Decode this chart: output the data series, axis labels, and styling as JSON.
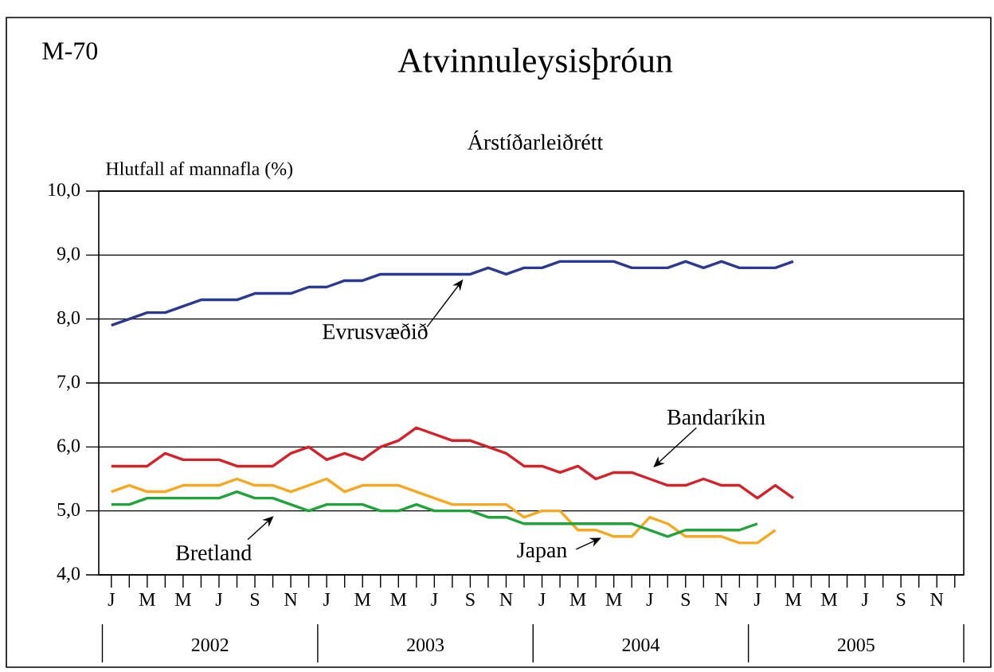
{
  "chart_data": {
    "type": "line",
    "title": "Atvinnuleysisþróun",
    "subtitle": "Árstíðarleiðrétt",
    "ylabel": "Hlutfall af mannafla (%)",
    "categories": [
      "J",
      null,
      "M",
      null,
      "M",
      null,
      "J",
      null,
      "S",
      null,
      "N",
      null,
      "J",
      null,
      "M",
      null,
      "M",
      null,
      "J",
      null,
      "S",
      null,
      "N",
      null,
      "J",
      null,
      "M",
      null,
      "M",
      null,
      "J",
      null,
      "S",
      null,
      "N",
      null,
      "J",
      null,
      "M",
      null,
      "M",
      null,
      "J",
      null,
      "S",
      null,
      "N",
      null
    ],
    "series": [
      {
        "name": "Evrusvæðið",
        "color": "#2b3990",
        "values": [
          7.9,
          8.0,
          8.1,
          8.1,
          8.2,
          8.3,
          8.3,
          8.3,
          8.4,
          8.4,
          8.4,
          8.5,
          8.5,
          8.6,
          8.6,
          8.7,
          8.7,
          8.7,
          8.7,
          8.7,
          8.7,
          8.8,
          8.7,
          8.8,
          8.8,
          8.9,
          8.9,
          8.9,
          8.9,
          8.8,
          8.8,
          8.8,
          8.9,
          8.8,
          8.9,
          8.8,
          8.8,
          8.8,
          8.9,
          null,
          null,
          null,
          null,
          null,
          null,
          null,
          null,
          null
        ]
      },
      {
        "name": "Bandaríkin",
        "color": "#d2232a",
        "values": [
          5.7,
          5.7,
          5.7,
          5.9,
          5.8,
          5.8,
          5.8,
          5.7,
          5.7,
          5.7,
          5.9,
          6.0,
          5.8,
          5.9,
          5.8,
          6.0,
          6.1,
          6.3,
          6.2,
          6.1,
          6.1,
          6.0,
          5.9,
          5.7,
          5.7,
          5.6,
          5.7,
          5.5,
          5.6,
          5.6,
          5.5,
          5.4,
          5.4,
          5.5,
          5.4,
          5.4,
          5.2,
          5.4,
          5.2,
          null,
          null,
          null,
          null,
          null,
          null,
          null,
          null,
          null
        ]
      },
      {
        "name": "Japan",
        "color": "#f7a823",
        "values": [
          5.3,
          5.4,
          5.3,
          5.3,
          5.4,
          5.4,
          5.4,
          5.5,
          5.4,
          5.4,
          5.3,
          5.4,
          5.5,
          5.3,
          5.4,
          5.4,
          5.4,
          5.3,
          5.2,
          5.1,
          5.1,
          5.1,
          5.1,
          4.9,
          5.0,
          5.0,
          4.7,
          4.7,
          4.6,
          4.6,
          4.9,
          4.8,
          4.6,
          4.6,
          4.6,
          4.5,
          4.5,
          4.7,
          null,
          null,
          null,
          null,
          null,
          null,
          null,
          null,
          null,
          null
        ]
      },
      {
        "name": "Bretland",
        "color": "#1fa33a",
        "values": [
          5.1,
          5.1,
          5.2,
          5.2,
          5.2,
          5.2,
          5.2,
          5.3,
          5.2,
          5.2,
          5.1,
          5.0,
          5.1,
          5.1,
          5.1,
          5.0,
          5.0,
          5.1,
          5.0,
          5.0,
          5.0,
          4.9,
          4.9,
          4.8,
          4.8,
          4.8,
          4.8,
          4.8,
          4.8,
          4.8,
          4.7,
          4.6,
          4.7,
          4.7,
          4.7,
          4.7,
          4.8,
          null,
          null,
          null,
          null,
          null,
          null,
          null,
          null,
          null,
          null,
          null
        ]
      }
    ],
    "ylim": [
      4,
      10
    ],
    "yticks": [
      {
        "value": 4,
        "label": "4,0"
      },
      {
        "value": 5,
        "label": "5,0"
      },
      {
        "value": 6,
        "label": "6,0"
      },
      {
        "value": 7,
        "label": "7,0"
      },
      {
        "value": 8,
        "label": "8,0"
      },
      {
        "value": 9,
        "label": "9,0"
      },
      {
        "value": 10,
        "label": "10,0"
      }
    ],
    "grid": "y",
    "annotations": [
      "M-70",
      "2002",
      "2003",
      "2004",
      "2005"
    ]
  }
}
